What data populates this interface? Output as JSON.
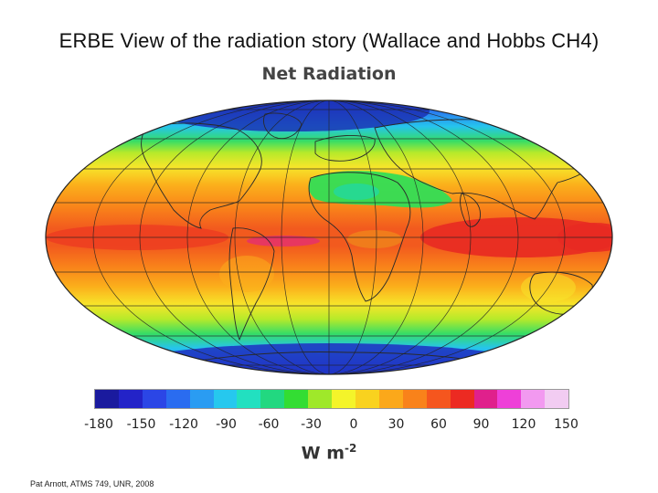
{
  "slide": {
    "title": "ERBE View of the radiation story (Wallace and Hobbs CH4)",
    "footer": "Pat Arnott, ATMS 749, UNR, 2008"
  },
  "map": {
    "title": "Net Radiation",
    "projection": "Mollweide",
    "quantity": "net radiation",
    "units_base": "W m",
    "units_exponent": "-2",
    "colorbar": {
      "ticks": [
        "-180",
        "-150",
        "-120",
        "-90",
        "-60",
        "-30",
        "0",
        "30",
        "60",
        "90",
        "120",
        "150"
      ],
      "colors": [
        "#1a1a9e",
        "#2323c8",
        "#2b46e6",
        "#2a6cf0",
        "#2a9cf2",
        "#26c8ee",
        "#22e0c0",
        "#22d880",
        "#33dd33",
        "#9fe82a",
        "#f4f42a",
        "#f9d21f",
        "#fba81a",
        "#f9821a",
        "#f5561e",
        "#ec2a22",
        "#e0208c",
        "#ee40d8",
        "#f299f0",
        "#f2ccf2"
      ]
    },
    "color_scheme": {
      "polar_regions": "blue",
      "subtropics": "yellow-orange",
      "tropics": "red",
      "sahara_arabia": "green"
    }
  }
}
